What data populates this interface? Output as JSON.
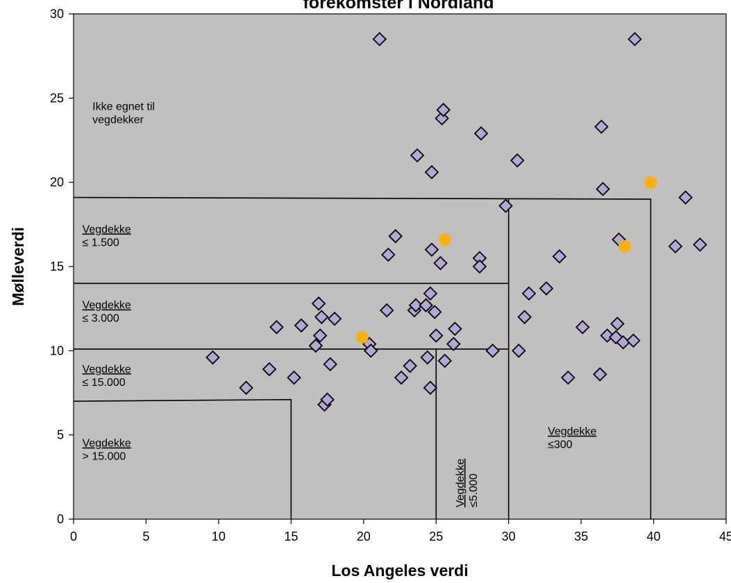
{
  "chart_data": {
    "type": "scatter",
    "title": "forekomster i Nordland",
    "xlabel": "Los Angeles verdi",
    "ylabel": "Mølleverdi",
    "xlim": [
      0,
      45
    ],
    "ylim": [
      0,
      30
    ],
    "x_ticks": [
      0,
      5,
      10,
      15,
      20,
      25,
      30,
      35,
      40,
      45
    ],
    "y_ticks": [
      0,
      5,
      10,
      15,
      20,
      25,
      30
    ],
    "grid": false,
    "background_color": "#c0c0c0",
    "series": [
      {
        "marker": "diamond",
        "color": "#b4a6d8",
        "points": [
          [
            9.6,
            9.6
          ],
          [
            11.9,
            7.8
          ],
          [
            13.5,
            8.9
          ],
          [
            14.0,
            11.4
          ],
          [
            15.2,
            8.4
          ],
          [
            15.7,
            11.5
          ],
          [
            16.7,
            10.3
          ],
          [
            16.9,
            12.8
          ],
          [
            17.0,
            10.9
          ],
          [
            17.1,
            12.0
          ],
          [
            17.3,
            6.8
          ],
          [
            17.5,
            7.1
          ],
          [
            17.7,
            9.2
          ],
          [
            18.0,
            11.9
          ],
          [
            20.4,
            10.4
          ],
          [
            20.5,
            10.0
          ],
          [
            21.1,
            28.5
          ],
          [
            21.6,
            12.4
          ],
          [
            21.7,
            15.7
          ],
          [
            22.2,
            16.8
          ],
          [
            22.6,
            8.4
          ],
          [
            23.2,
            9.1
          ],
          [
            23.5,
            12.4
          ],
          [
            23.6,
            12.7
          ],
          [
            23.7,
            21.6
          ],
          [
            24.3,
            12.7
          ],
          [
            24.4,
            9.6
          ],
          [
            24.6,
            7.8
          ],
          [
            24.6,
            13.4
          ],
          [
            24.7,
            20.6
          ],
          [
            24.7,
            16.0
          ],
          [
            24.9,
            12.3
          ],
          [
            25.0,
            10.9
          ],
          [
            25.3,
            15.2
          ],
          [
            25.4,
            23.8
          ],
          [
            25.5,
            24.3
          ],
          [
            25.6,
            9.4
          ],
          [
            26.2,
            10.4
          ],
          [
            26.3,
            11.3
          ],
          [
            28.0,
            15.5
          ],
          [
            28.0,
            15.0
          ],
          [
            28.1,
            22.9
          ],
          [
            28.9,
            10.0
          ],
          [
            29.8,
            18.6
          ],
          [
            30.6,
            21.3
          ],
          [
            30.7,
            10.0
          ],
          [
            31.1,
            12.0
          ],
          [
            31.4,
            13.4
          ],
          [
            32.6,
            13.7
          ],
          [
            33.5,
            15.6
          ],
          [
            34.1,
            8.4
          ],
          [
            35.1,
            11.4
          ],
          [
            36.3,
            8.6
          ],
          [
            36.4,
            23.3
          ],
          [
            36.5,
            19.6
          ],
          [
            36.8,
            10.9
          ],
          [
            37.4,
            10.8
          ],
          [
            37.5,
            11.6
          ],
          [
            37.6,
            16.6
          ],
          [
            37.9,
            10.5
          ],
          [
            38.6,
            10.6
          ],
          [
            38.7,
            28.5
          ],
          [
            41.5,
            16.2
          ],
          [
            42.2,
            19.1
          ],
          [
            43.2,
            16.3
          ]
        ]
      },
      {
        "marker": "circle",
        "color": "#ffb000",
        "points": [
          [
            19.9,
            10.8
          ],
          [
            25.6,
            16.6
          ],
          [
            38.0,
            16.2
          ],
          [
            39.8,
            20.0
          ]
        ]
      }
    ],
    "boundaries": [
      [
        [
          0,
          19.1
        ],
        [
          39.8,
          19.0
        ],
        [
          39.8,
          0
        ]
      ],
      [
        [
          0,
          14.0
        ],
        [
          30.0,
          14.0
        ]
      ],
      [
        [
          30.0,
          19.0
        ],
        [
          30.0,
          0
        ]
      ],
      [
        [
          0,
          10.1
        ],
        [
          30.0,
          10.1
        ]
      ],
      [
        [
          25.0,
          10.1
        ],
        [
          25.0,
          0
        ]
      ],
      [
        [
          0,
          7.0
        ],
        [
          15.0,
          7.1
        ],
        [
          15.0,
          0
        ]
      ]
    ],
    "region_labels": [
      {
        "lines": [
          "Ikke egnet til",
          "vegdekker"
        ],
        "underline_first": false,
        "anchor": [
          1.3,
          24.3
        ],
        "vertical": false
      },
      {
        "lines": [
          "Vegdekke",
          "≤ 1.500"
        ],
        "underline_first": true,
        "anchor": [
          0.6,
          17.0
        ],
        "vertical": false
      },
      {
        "lines": [
          "Vegdekke",
          "≤ 3.000"
        ],
        "underline_first": true,
        "anchor": [
          0.6,
          12.5
        ],
        "vertical": false
      },
      {
        "lines": [
          "Vegdekke",
          "≤ 15.000"
        ],
        "underline_first": true,
        "anchor": [
          0.6,
          8.7
        ],
        "vertical": false
      },
      {
        "lines": [
          "Vegdekke",
          "> 15.000"
        ],
        "underline_first": true,
        "anchor": [
          0.6,
          4.3
        ],
        "vertical": false
      },
      {
        "lines": [
          "Vegdekke",
          "≤300"
        ],
        "underline_first": true,
        "anchor": [
          32.7,
          5.0
        ],
        "vertical": false
      },
      {
        "lines": [
          "Vegdekke",
          "≤5.000"
        ],
        "underline_first": true,
        "anchor": [
          26.9,
          0.7
        ],
        "vertical": true
      }
    ]
  }
}
